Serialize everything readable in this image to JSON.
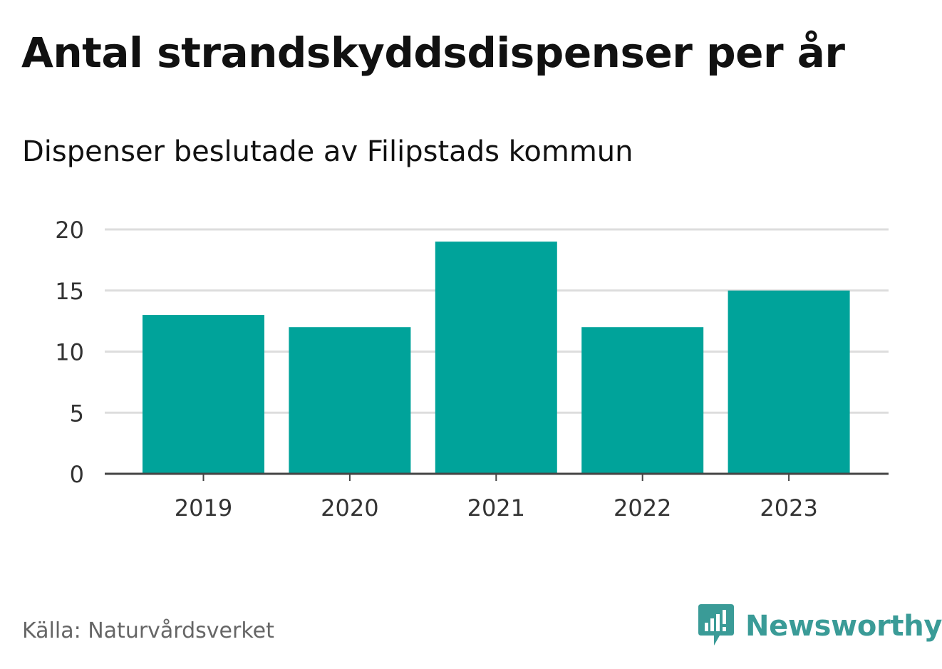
{
  "header": {
    "title": "Antal strandskyddsdispenser per år",
    "subtitle": "Dispenser beslutade av Filipstads kommun"
  },
  "footer": {
    "source": "Källa: Naturvårdsverket",
    "brand": "Newsworthy",
    "brand_icon": "newsworthy-logo-icon"
  },
  "colors": {
    "bar": "#00a39a",
    "grid": "#dddddd",
    "axis": "#444444",
    "brand": "#3a9b97"
  },
  "chart_data": {
    "type": "bar",
    "title": "Antal strandskyddsdispenser per år",
    "subtitle": "Dispenser beslutade av Filipstads kommun",
    "xlabel": "",
    "ylabel": "",
    "categories": [
      "2019",
      "2020",
      "2021",
      "2022",
      "2023"
    ],
    "values": [
      13,
      12,
      19,
      12,
      15
    ],
    "ylim": [
      0,
      20
    ],
    "yticks": [
      0,
      5,
      10,
      15,
      20
    ],
    "grid": true,
    "legend": "none"
  }
}
